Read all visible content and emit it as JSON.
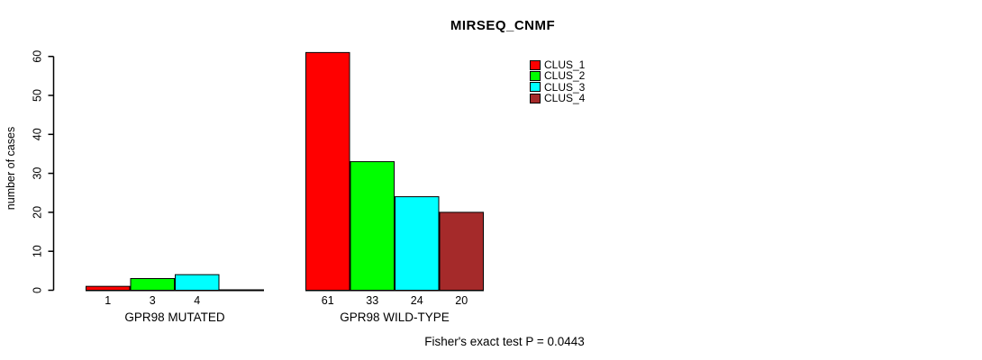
{
  "chart_data": {
    "type": "bar",
    "title": "MIRSEQ_CNMF",
    "ylabel": "number of cases",
    "xlabel": "",
    "ylim": [
      0,
      60
    ],
    "yticks": [
      0,
      10,
      20,
      30,
      40,
      50,
      60
    ],
    "grid": false,
    "legend_position": "top-right",
    "categories": [
      "GPR98 MUTATED",
      "GPR98 WILD-TYPE"
    ],
    "series": [
      {
        "name": "CLUS_1",
        "color": "#ff0000",
        "values": [
          1,
          61
        ],
        "value_labels": [
          "1",
          "61"
        ]
      },
      {
        "name": "CLUS_2",
        "color": "#00ff00",
        "values": [
          3,
          33
        ],
        "value_labels": [
          "3",
          "33"
        ]
      },
      {
        "name": "CLUS_3",
        "color": "#00ffff",
        "values": [
          4,
          24
        ],
        "value_labels": [
          "4",
          "24"
        ]
      },
      {
        "name": "CLUS_4",
        "color": "#a52a2a",
        "values": [
          0,
          20
        ],
        "value_labels": [
          "",
          "20"
        ]
      }
    ],
    "annotation": "Fisher's exact test P = 0.0443"
  },
  "colors": {
    "background": "#ffffff",
    "axis": "#000000",
    "text": "#000000"
  }
}
